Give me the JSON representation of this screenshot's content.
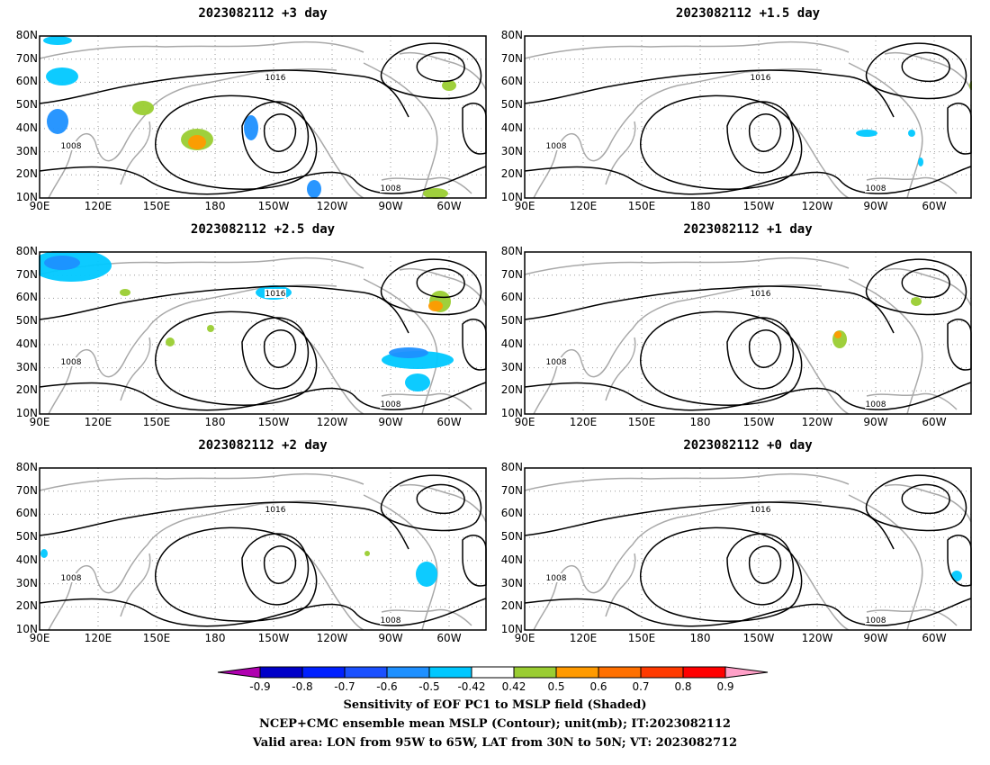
{
  "panels": [
    {
      "title": "2023082112 +3 day"
    },
    {
      "title": "2023082112 +1.5 day"
    },
    {
      "title": "2023082112 +2.5 day"
    },
    {
      "title": "2023082112 +1 day"
    },
    {
      "title": "2023082112 +2 day"
    },
    {
      "title": "2023082112 +0 day"
    }
  ],
  "lat_labels": [
    "80N",
    "70N",
    "60N",
    "50N",
    "40N",
    "30N",
    "20N",
    "10N"
  ],
  "lon_labels": [
    "90E",
    "120E",
    "150E",
    "180",
    "150W",
    "120W",
    "90W",
    "60W"
  ],
  "contour_labels": [
    "1008",
    "1016"
  ],
  "colorbar": {
    "ticks": [
      "-0.9",
      "-0.8",
      "-0.7",
      "-0.6",
      "-0.5",
      "-0.42",
      "0.42",
      "0.5",
      "0.6",
      "0.7",
      "0.8",
      "0.9"
    ],
    "colors": [
      "#b000b0",
      "#0000c8",
      "#0020ff",
      "#1a50ff",
      "#1e90ff",
      "#00c8ff",
      "#ffffff",
      "#9acd32",
      "#ff9a00",
      "#ff7000",
      "#ff3a00",
      "#ff0000",
      "#ffa0c8"
    ]
  },
  "caption": {
    "line1": "Sensitivity of EOF PC1 to MSLP field (Shaded)",
    "line2": "NCEP+CMC ensemble mean MSLP (Contour); unit(mb); IT:2023082112",
    "line3": "Valid area: LON from 95W to 65W, LAT from 30N to 50N; VT: 2023082712"
  }
}
